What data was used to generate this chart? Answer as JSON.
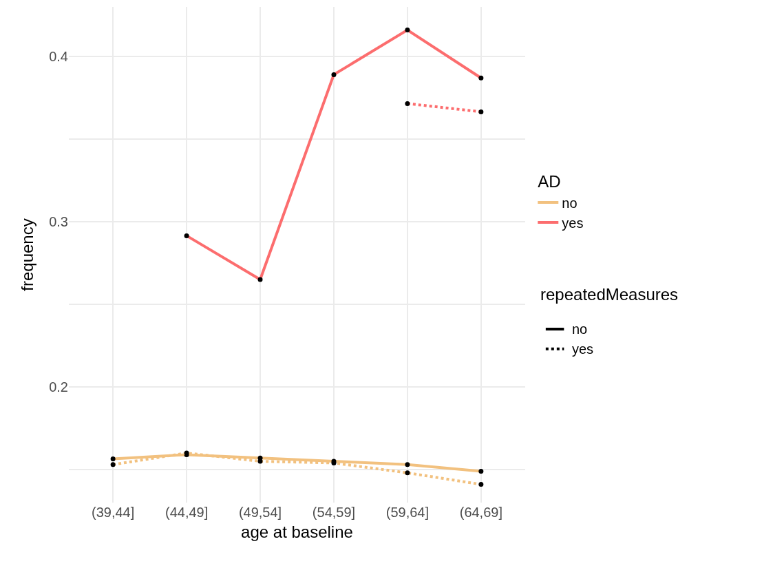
{
  "chart_data": {
    "type": "line",
    "xlabel": "age at baseline",
    "ylabel": "frequency",
    "categories": [
      "(39,44]",
      "(44,49]",
      "(49,54]",
      "(54,59]",
      "(59,64]",
      "(64,69]"
    ],
    "series": [
      {
        "name": "no",
        "color": "#f2c17f",
        "line_style": "solid",
        "values": [
          0.1565,
          0.159,
          0.157,
          0.155,
          0.153,
          0.149
        ]
      },
      {
        "color": "#f2c17f",
        "line_style": "dotted",
        "values": [
          0.153,
          0.16,
          0.155,
          0.154,
          0.148,
          0.141
        ]
      },
      {
        "name": "yes",
        "color": "#fc6d6e",
        "line_style": "solid",
        "values": [
          null,
          0.2915,
          0.265,
          0.389,
          0.416,
          0.387
        ]
      },
      {
        "color": "#fc6d6e",
        "line_style": "dotted",
        "values": [
          null,
          null,
          null,
          null,
          0.3715,
          0.3665
        ]
      }
    ],
    "legend_title": "AD",
    "annotations": [
      "repeatedMeasures",
      "no",
      "yes"
    ],
    "ylim": [
      0.13,
      0.43
    ],
    "yticks": [
      {
        "value": 0.15,
        "label": null
      },
      0.2,
      {
        "value": 0.25,
        "label": null
      },
      0.3,
      {
        "value": 0.35,
        "label": null
      },
      0.4
    ],
    "grid": true,
    "legend": "right",
    "marker": "circle"
  }
}
